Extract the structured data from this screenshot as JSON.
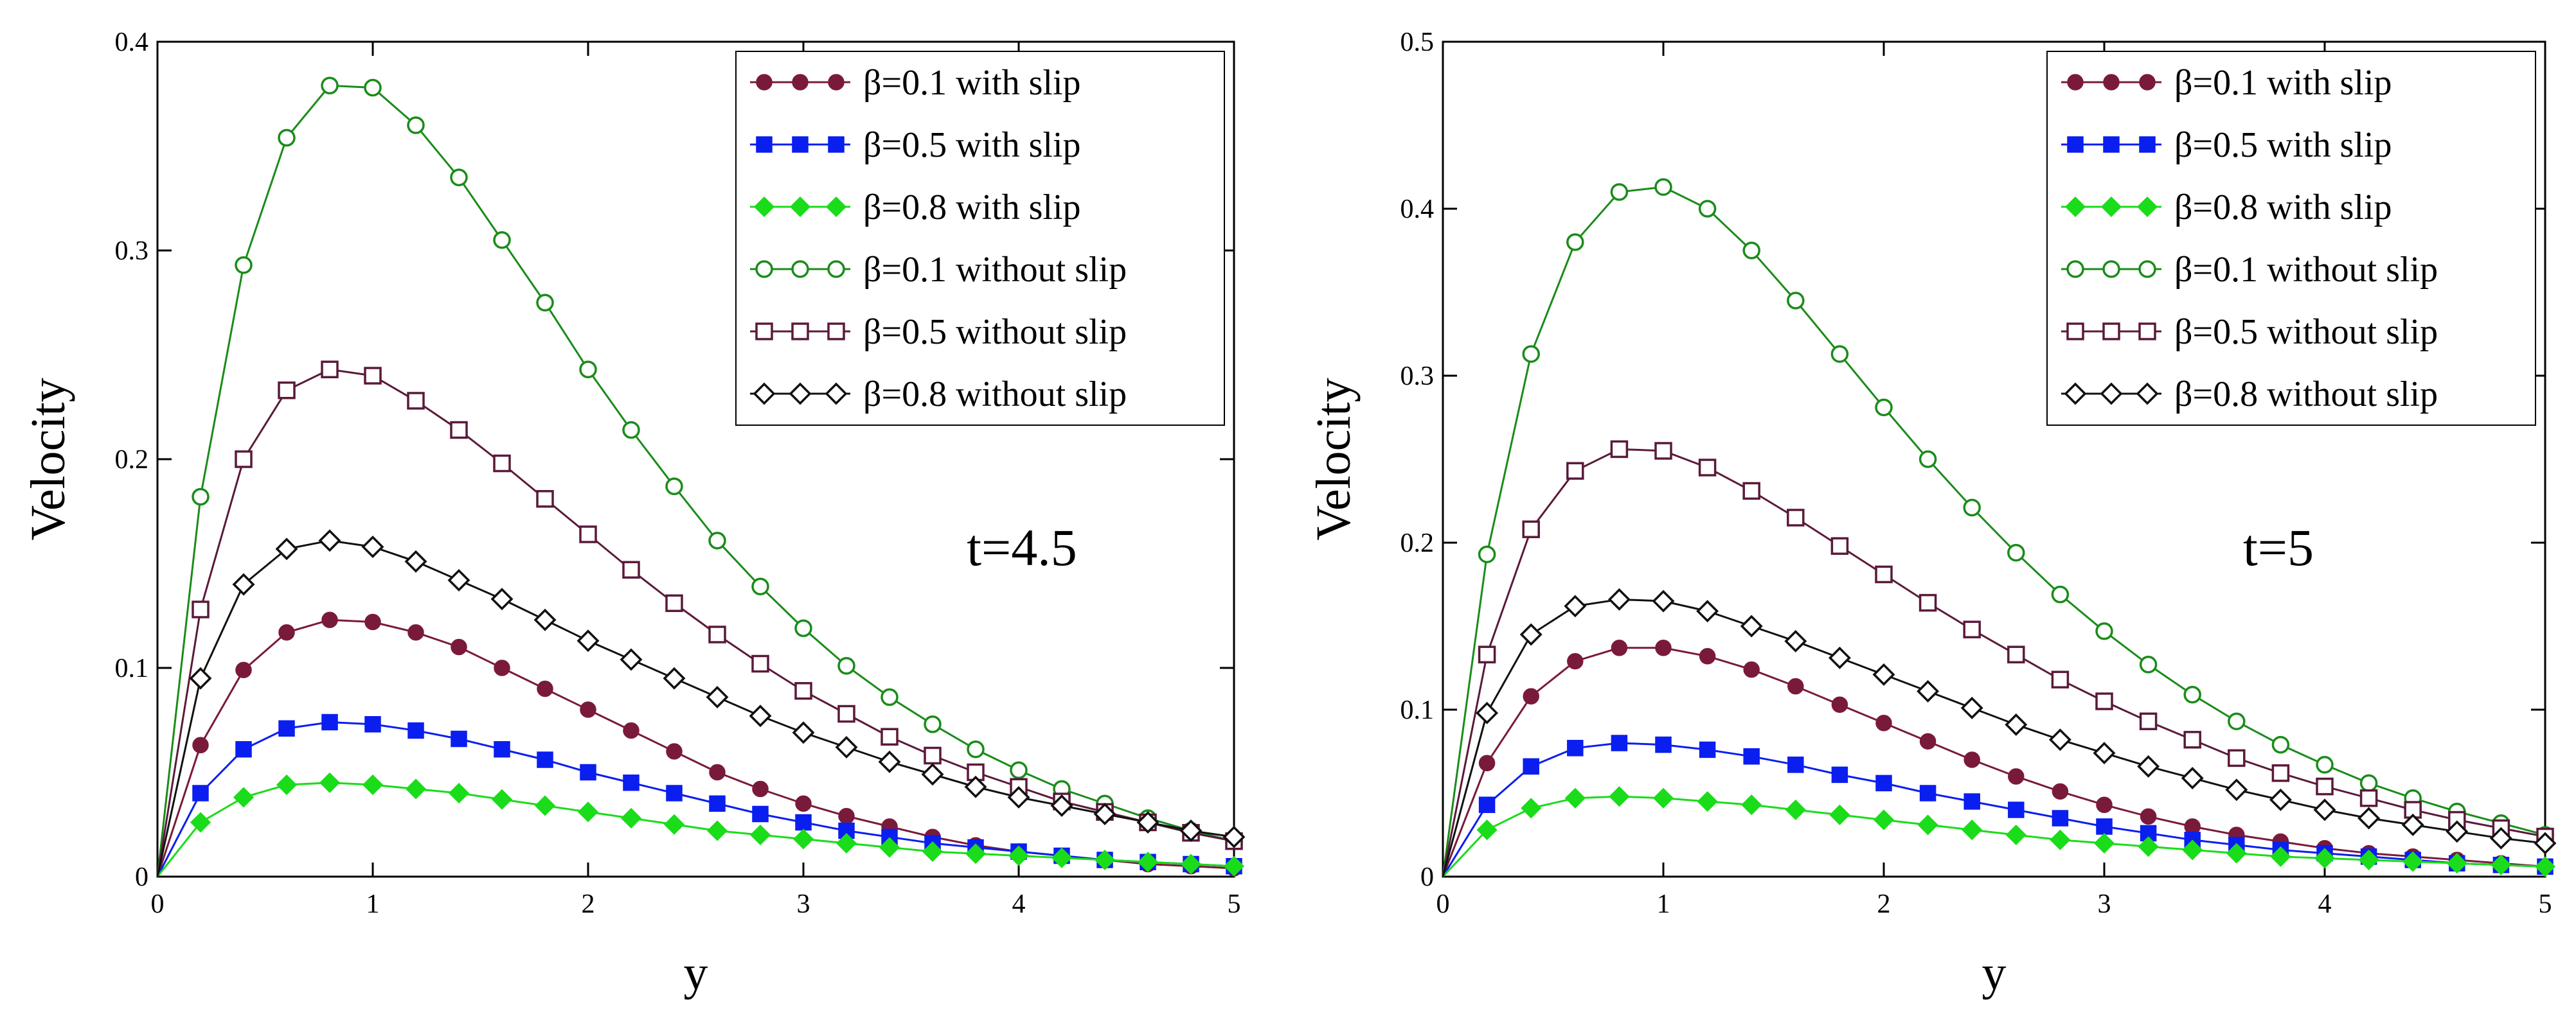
{
  "chart_data": [
    {
      "type": "line",
      "title": "",
      "annotation": "t=4.5",
      "xlabel": "y",
      "ylabel": "Velocity",
      "xlim": [
        0,
        5
      ],
      "ylim": [
        0,
        0.4
      ],
      "xticks": [
        "0",
        "1",
        "2",
        "3",
        "4",
        "5"
      ],
      "yticks": [
        "0",
        "0.1",
        "0.2",
        "0.3",
        "0.4"
      ],
      "x": [
        0,
        0.2,
        0.4,
        0.6,
        0.8,
        1.0,
        1.2,
        1.4,
        1.6,
        1.8,
        2.0,
        2.2,
        2.4,
        2.6,
        2.8,
        3.0,
        3.2,
        3.4,
        3.6,
        3.8,
        4.0,
        4.2,
        4.4,
        4.6,
        4.8,
        5.0
      ],
      "series": [
        {
          "name": "β=0.1 with slip",
          "color": "#7a1a3a",
          "marker": "filled-circle",
          "values": [
            0,
            0.063,
            0.099,
            0.117,
            0.123,
            0.122,
            0.117,
            0.11,
            0.1,
            0.09,
            0.08,
            0.07,
            0.06,
            0.05,
            0.042,
            0.035,
            0.029,
            0.024,
            0.019,
            0.015,
            0.012,
            0.01,
            0.008,
            0.006,
            0.005,
            0.004
          ]
        },
        {
          "name": "β=0.5 with slip",
          "color": "#0a1ef0",
          "marker": "filled-square",
          "values": [
            0,
            0.04,
            0.061,
            0.071,
            0.074,
            0.073,
            0.07,
            0.066,
            0.061,
            0.056,
            0.05,
            0.045,
            0.04,
            0.035,
            0.03,
            0.026,
            0.022,
            0.019,
            0.016,
            0.014,
            0.012,
            0.01,
            0.008,
            0.007,
            0.006,
            0.005
          ]
        },
        {
          "name": "β=0.8 with slip",
          "color": "#1adc1a",
          "marker": "filled-diamond",
          "values": [
            0,
            0.026,
            0.038,
            0.044,
            0.045,
            0.044,
            0.042,
            0.04,
            0.037,
            0.034,
            0.031,
            0.028,
            0.025,
            0.022,
            0.02,
            0.018,
            0.016,
            0.014,
            0.012,
            0.011,
            0.01,
            0.009,
            0.008,
            0.007,
            0.006,
            0.005
          ]
        },
        {
          "name": "β=0.1 without slip",
          "color": "#1a8c1a",
          "marker": "open-circle",
          "values": [
            0,
            0.182,
            0.293,
            0.354,
            0.379,
            0.378,
            0.36,
            0.335,
            0.305,
            0.275,
            0.243,
            0.214,
            0.187,
            0.161,
            0.139,
            0.119,
            0.101,
            0.086,
            0.073,
            0.061,
            0.051,
            0.042,
            0.035,
            0.028,
            0.022,
            0.017
          ]
        },
        {
          "name": "β=0.5 without slip",
          "color": "#5a1a3a",
          "marker": "open-square",
          "values": [
            0,
            0.128,
            0.2,
            0.233,
            0.243,
            0.24,
            0.228,
            0.214,
            0.198,
            0.181,
            0.164,
            0.147,
            0.131,
            0.116,
            0.102,
            0.089,
            0.078,
            0.067,
            0.058,
            0.05,
            0.043,
            0.036,
            0.031,
            0.026,
            0.021,
            0.017
          ]
        },
        {
          "name": "β=0.8 without slip",
          "color": "#111111",
          "marker": "open-diamond",
          "values": [
            0,
            0.095,
            0.14,
            0.157,
            0.161,
            0.158,
            0.151,
            0.142,
            0.133,
            0.123,
            0.113,
            0.104,
            0.095,
            0.086,
            0.077,
            0.069,
            0.062,
            0.055,
            0.049,
            0.043,
            0.038,
            0.034,
            0.03,
            0.026,
            0.022,
            0.019
          ]
        }
      ]
    },
    {
      "type": "line",
      "title": "",
      "annotation": "t=5",
      "xlabel": "y",
      "ylabel": "Velocity",
      "xlim": [
        0,
        5
      ],
      "ylim": [
        0,
        0.5
      ],
      "xticks": [
        "0",
        "1",
        "2",
        "3",
        "4",
        "5"
      ],
      "yticks": [
        "0",
        "0.1",
        "0.2",
        "0.3",
        "0.4",
        "0.5"
      ],
      "x": [
        0,
        0.2,
        0.4,
        0.6,
        0.8,
        1.0,
        1.2,
        1.4,
        1.6,
        1.8,
        2.0,
        2.2,
        2.4,
        2.6,
        2.8,
        3.0,
        3.2,
        3.4,
        3.6,
        3.8,
        4.0,
        4.2,
        4.4,
        4.6,
        4.8,
        5.0
      ],
      "series": [
        {
          "name": "β=0.1 with slip",
          "color": "#7a1a3a",
          "marker": "filled-circle",
          "values": [
            0,
            0.068,
            0.108,
            0.129,
            0.137,
            0.137,
            0.132,
            0.124,
            0.114,
            0.103,
            0.092,
            0.081,
            0.07,
            0.06,
            0.051,
            0.043,
            0.036,
            0.03,
            0.025,
            0.021,
            0.017,
            0.014,
            0.012,
            0.01,
            0.008,
            0.006
          ]
        },
        {
          "name": "β=0.5 with slip",
          "color": "#0a1ef0",
          "marker": "filled-square",
          "values": [
            0,
            0.043,
            0.066,
            0.077,
            0.08,
            0.079,
            0.076,
            0.072,
            0.067,
            0.061,
            0.056,
            0.05,
            0.045,
            0.04,
            0.035,
            0.03,
            0.026,
            0.022,
            0.019,
            0.016,
            0.014,
            0.012,
            0.01,
            0.008,
            0.007,
            0.006
          ]
        },
        {
          "name": "β=0.8 with slip",
          "color": "#1adc1a",
          "marker": "filled-diamond",
          "values": [
            0,
            0.028,
            0.041,
            0.047,
            0.048,
            0.047,
            0.045,
            0.043,
            0.04,
            0.037,
            0.034,
            0.031,
            0.028,
            0.025,
            0.022,
            0.02,
            0.018,
            0.016,
            0.014,
            0.012,
            0.011,
            0.01,
            0.009,
            0.008,
            0.007,
            0.006
          ]
        },
        {
          "name": "β=0.1 without slip",
          "color": "#1a8c1a",
          "marker": "open-circle",
          "values": [
            0,
            0.193,
            0.313,
            0.38,
            0.41,
            0.413,
            0.4,
            0.375,
            0.345,
            0.313,
            0.281,
            0.25,
            0.221,
            0.194,
            0.169,
            0.147,
            0.127,
            0.109,
            0.093,
            0.079,
            0.067,
            0.056,
            0.047,
            0.039,
            0.032,
            0.025
          ]
        },
        {
          "name": "β=0.5 without slip",
          "color": "#5a1a3a",
          "marker": "open-square",
          "values": [
            0,
            0.133,
            0.208,
            0.243,
            0.256,
            0.255,
            0.245,
            0.231,
            0.215,
            0.198,
            0.181,
            0.164,
            0.148,
            0.133,
            0.118,
            0.105,
            0.093,
            0.082,
            0.071,
            0.062,
            0.054,
            0.047,
            0.04,
            0.034,
            0.029,
            0.024
          ]
        },
        {
          "name": "β=0.8 without slip",
          "color": "#111111",
          "marker": "open-diamond",
          "values": [
            0,
            0.098,
            0.145,
            0.162,
            0.166,
            0.165,
            0.159,
            0.15,
            0.141,
            0.131,
            0.121,
            0.111,
            0.101,
            0.091,
            0.082,
            0.074,
            0.066,
            0.059,
            0.052,
            0.046,
            0.04,
            0.035,
            0.031,
            0.027,
            0.023,
            0.02
          ]
        }
      ]
    }
  ]
}
